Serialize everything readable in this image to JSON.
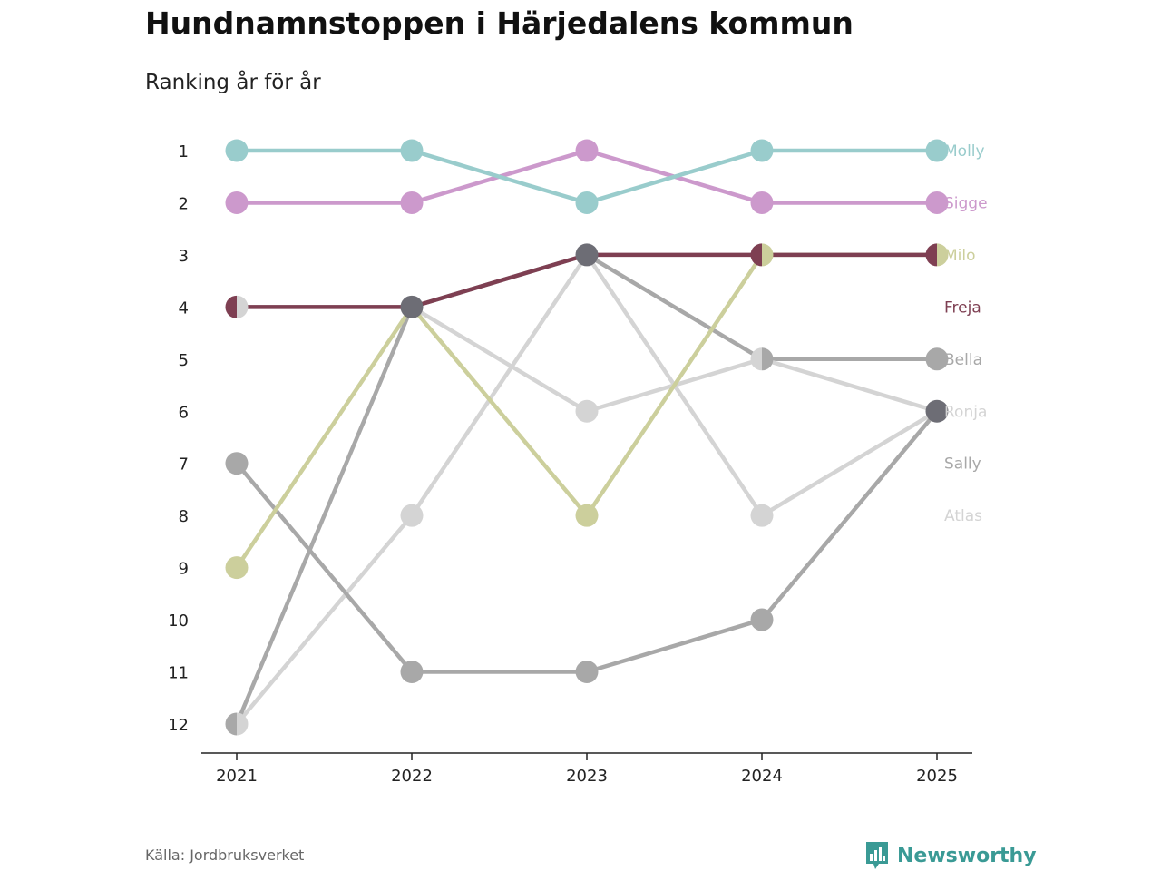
{
  "header": {
    "title": "Hundnamnstoppen i Härjedalens kommun",
    "subtitle": "Ranking år för år"
  },
  "footer": {
    "source": "Källa: Jordbruksverket",
    "brand": "Newsworthy",
    "brand_icon": "bar-chart-icon",
    "brand_color": "#3a9a95"
  },
  "chart_data": {
    "type": "line",
    "title": "Hundnamnstoppen i Härjedalens kommun",
    "subtitle": "Ranking år för år",
    "xlabel": "",
    "ylabel": "",
    "x": [
      "2021",
      "2022",
      "2023",
      "2024",
      "2025"
    ],
    "y_ticks": [
      "1",
      "2",
      "3",
      "4",
      "5",
      "6",
      "7",
      "8",
      "9",
      "10",
      "11",
      "12"
    ],
    "ylim": [
      1,
      12
    ],
    "y_inverted": true,
    "grid": false,
    "legend": "end-labels-right",
    "series": [
      {
        "name": "Atlas",
        "color": "#d4d4d4",
        "values": [
          12,
          8,
          3,
          8,
          6
        ]
      },
      {
        "name": "Sally",
        "color": "#a8a8a8",
        "values": [
          12,
          4,
          3,
          5,
          5
        ]
      },
      {
        "name": "Ronja",
        "color": "#d4d4d4",
        "values": [
          4,
          4,
          6,
          5,
          6
        ]
      },
      {
        "name": "Bella",
        "color": "#a8a8a8",
        "values": [
          7,
          11,
          11,
          10,
          6
        ]
      },
      {
        "name": "Milo",
        "color": "#cccf9c",
        "values": [
          9,
          4,
          8,
          3,
          3
        ]
      },
      {
        "name": "Freja",
        "color": "#7e3f52",
        "values": [
          4,
          4,
          3,
          3,
          3
        ]
      },
      {
        "name": "Sigge",
        "color": "#cc99cc",
        "values": [
          2,
          2,
          1,
          2,
          2
        ]
      },
      {
        "name": "Molly",
        "color": "#99cccc",
        "values": [
          1,
          1,
          2,
          1,
          1
        ]
      }
    ],
    "end_labels": [
      {
        "name": "Molly",
        "rank": 1,
        "color": "#99cccc"
      },
      {
        "name": "Sigge",
        "rank": 2,
        "color": "#cc99cc"
      },
      {
        "name": "Milo",
        "rank": 3,
        "color": "#cccf9c"
      },
      {
        "name": "Freja",
        "rank": 4,
        "color": "#7e3f52"
      },
      {
        "name": "Bella",
        "rank": 5,
        "color": "#a8a8a8"
      },
      {
        "name": "Ronja",
        "rank": 6,
        "color": "#d4d4d4"
      },
      {
        "name": "Sally",
        "rank": 7,
        "color": "#a8a8a8"
      },
      {
        "name": "Atlas",
        "rank": 8,
        "color": "#d4d4d4"
      }
    ],
    "overlap_color": "#6d6d75"
  }
}
